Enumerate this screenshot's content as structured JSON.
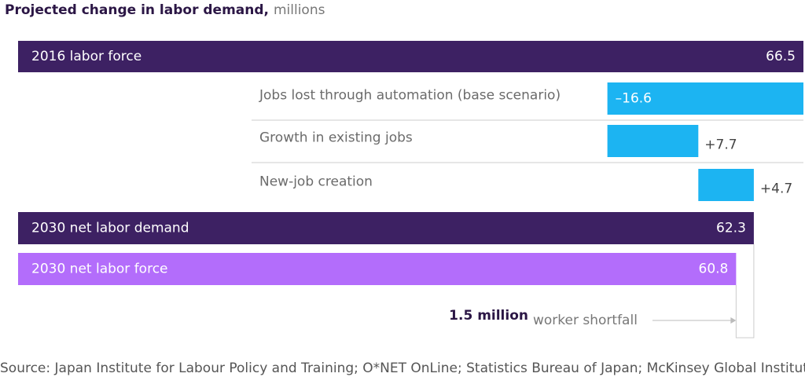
{
  "chart_data": {
    "type": "waterfall",
    "title": "Projected change in labor demand,",
    "subtitle": "millions",
    "categories": [
      "2016 labor force",
      "Jobs lost through automation (base scenario)",
      "Growth in existing jobs",
      "New-job creation",
      "2030 net labor demand",
      "2030 net labor force"
    ],
    "measure": [
      "absolute",
      "relative",
      "relative",
      "relative",
      "absolute",
      "absolute"
    ],
    "values": [
      66.5,
      -16.6,
      7.7,
      4.7,
      62.3,
      60.8
    ],
    "value_labels": [
      "66.5",
      "–16.6",
      "+7.7",
      "+4.7",
      "62.3",
      "60.8"
    ],
    "colors": [
      "#3d2163",
      "#1cb4f2",
      "#1cb4f2",
      "#1cb4f2",
      "#3d2163",
      "#b36dfb"
    ],
    "annotation": {
      "value": "1.5 million",
      "text": "worker shortfall"
    },
    "source": "Source: Japan Institute for Labour Policy and Training; O*NET OnLine; Statistics Bureau of Japan; McKinsey Global Institute analysis"
  }
}
